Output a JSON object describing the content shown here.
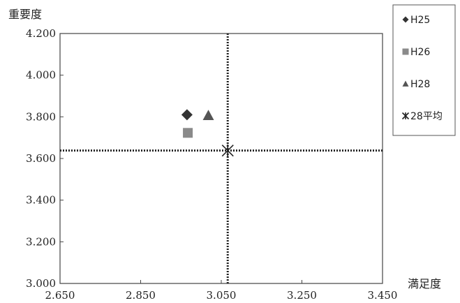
{
  "chart_data": {
    "type": "scatter",
    "title": "",
    "xlabel": "満足度",
    "ylabel": "重要度",
    "xlim": [
      2.65,
      3.45
    ],
    "ylim": [
      3.0,
      4.2
    ],
    "xticks": [
      "2.650",
      "2.850",
      "3.050",
      "3.250",
      "3.450"
    ],
    "yticks": [
      "3.000",
      "3.200",
      "3.400",
      "3.600",
      "3.800",
      "4.000",
      "4.200"
    ],
    "tick_values_x": [
      2.65,
      2.85,
      3.05,
      3.25,
      3.45
    ],
    "tick_values_y": [
      3.0,
      3.2,
      3.4,
      3.6,
      3.8,
      4.0,
      4.2
    ],
    "reference_lines": {
      "x": 3.066,
      "y": 3.638
    },
    "series": [
      {
        "name": "H25",
        "marker": "diamond",
        "color": "#333333",
        "x": 2.965,
        "y": 3.81
      },
      {
        "name": "H26",
        "marker": "square",
        "color": "#8a8a8a",
        "x": 2.967,
        "y": 3.723
      },
      {
        "name": "H28",
        "marker": "triangle",
        "color": "#555555",
        "x": 3.018,
        "y": 3.807
      },
      {
        "name": "28平均",
        "marker": "asterisk",
        "color": "#222222",
        "x": 3.066,
        "y": 3.638
      }
    ],
    "legend_position": "right",
    "grid": false
  }
}
